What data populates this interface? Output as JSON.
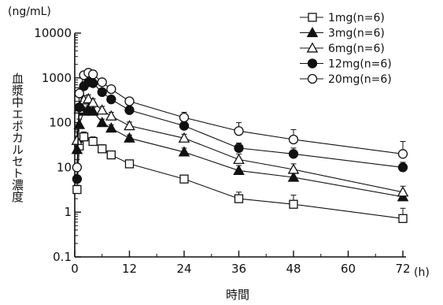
{
  "chart_data": {
    "type": "line",
    "y_unit_label": "(ng/mL)",
    "x_unit_label": "(h)",
    "xlabel": "時間",
    "ylabel": "血漿中エポカルセト濃度",
    "yscale": "log",
    "ylim": [
      0.1,
      10000
    ],
    "xlim": [
      0,
      72
    ],
    "x_ticks": [
      "0",
      "12",
      "24",
      "36",
      "48",
      "60",
      "72"
    ],
    "y_ticks": [
      "0.1",
      "1",
      "10",
      "100",
      "1000",
      "10000"
    ],
    "legend_position": "top-right",
    "series": [
      {
        "name": "1mg(n=6)",
        "marker": "open-square",
        "points": [
          {
            "x": 0.5,
            "y": 3.2,
            "err": 0.8
          },
          {
            "x": 1,
            "y": 30,
            "err": 12
          },
          {
            "x": 2,
            "y": 48,
            "err": 14
          },
          {
            "x": 4,
            "y": 38,
            "err": 10
          },
          {
            "x": 6,
            "y": 26,
            "err": 6
          },
          {
            "x": 8,
            "y": 19,
            "err": 4
          },
          {
            "x": 12,
            "y": 12,
            "err": 2.5
          },
          {
            "x": 24,
            "y": 5.5,
            "err": 1.2
          },
          {
            "x": 36,
            "y": 2.0,
            "err": 0.8
          },
          {
            "x": 48,
            "y": 1.5,
            "err": 0.9
          },
          {
            "x": 72,
            "y": 0.72,
            "err": 0.5
          }
        ]
      },
      {
        "name": "3mg(n=6)",
        "marker": "filled-triangle",
        "points": [
          {
            "x": 0.5,
            "y": 25,
            "err": 15
          },
          {
            "x": 1,
            "y": 90,
            "err": 30
          },
          {
            "x": 2,
            "y": 180,
            "err": 40
          },
          {
            "x": 3,
            "y": 200,
            "err": 40
          },
          {
            "x": 4,
            "y": 180,
            "err": 35
          },
          {
            "x": 6,
            "y": 100,
            "err": 20
          },
          {
            "x": 8,
            "y": 75,
            "err": 15
          },
          {
            "x": 12,
            "y": 45,
            "err": 8
          },
          {
            "x": 24,
            "y": 22,
            "err": 5
          },
          {
            "x": 36,
            "y": 8.5,
            "err": 2.5
          },
          {
            "x": 48,
            "y": 6,
            "err": 1.8
          },
          {
            "x": 72,
            "y": 2.2,
            "err": 0.8
          }
        ]
      },
      {
        "name": "6mg(n=6)",
        "marker": "open-triangle",
        "points": [
          {
            "x": 0.5,
            "y": 40,
            "err": 25
          },
          {
            "x": 1,
            "y": 200,
            "err": 60
          },
          {
            "x": 2,
            "y": 320,
            "err": 80
          },
          {
            "x": 3,
            "y": 340,
            "err": 80
          },
          {
            "x": 4,
            "y": 280,
            "err": 60
          },
          {
            "x": 6,
            "y": 190,
            "err": 40
          },
          {
            "x": 8,
            "y": 140,
            "err": 30
          },
          {
            "x": 12,
            "y": 85,
            "err": 18
          },
          {
            "x": 24,
            "y": 45,
            "err": 10
          },
          {
            "x": 36,
            "y": 15,
            "err": 5
          },
          {
            "x": 48,
            "y": 9,
            "err": 3
          },
          {
            "x": 72,
            "y": 2.8,
            "err": 1
          }
        ]
      },
      {
        "name": "12mg(n=6)",
        "marker": "filled-circle",
        "points": [
          {
            "x": 0.5,
            "y": 5.5,
            "err": 3
          },
          {
            "x": 1,
            "y": 220,
            "err": 80
          },
          {
            "x": 2,
            "y": 650,
            "err": 150
          },
          {
            "x": 3,
            "y": 800,
            "err": 180
          },
          {
            "x": 4,
            "y": 760,
            "err": 160
          },
          {
            "x": 6,
            "y": 480,
            "err": 100
          },
          {
            "x": 8,
            "y": 330,
            "err": 70
          },
          {
            "x": 12,
            "y": 190,
            "err": 40
          },
          {
            "x": 24,
            "y": 85,
            "err": 25
          },
          {
            "x": 36,
            "y": 27,
            "err": 8
          },
          {
            "x": 48,
            "y": 20,
            "err": 7
          },
          {
            "x": 72,
            "y": 10,
            "err": 3
          }
        ]
      },
      {
        "name": "20mg(n=6)",
        "marker": "open-circle",
        "points": [
          {
            "x": 0.5,
            "y": 10,
            "err": 5
          },
          {
            "x": 1,
            "y": 450,
            "err": 150
          },
          {
            "x": 2,
            "y": 1150,
            "err": 250
          },
          {
            "x": 3,
            "y": 1300,
            "err": 260
          },
          {
            "x": 4,
            "y": 1200,
            "err": 240
          },
          {
            "x": 6,
            "y": 800,
            "err": 150
          },
          {
            "x": 8,
            "y": 560,
            "err": 100
          },
          {
            "x": 12,
            "y": 300,
            "err": 60
          },
          {
            "x": 24,
            "y": 130,
            "err": 40
          },
          {
            "x": 36,
            "y": 65,
            "err": 35
          },
          {
            "x": 48,
            "y": 42,
            "err": 28
          },
          {
            "x": 72,
            "y": 20,
            "err": 18
          }
        ]
      }
    ]
  }
}
